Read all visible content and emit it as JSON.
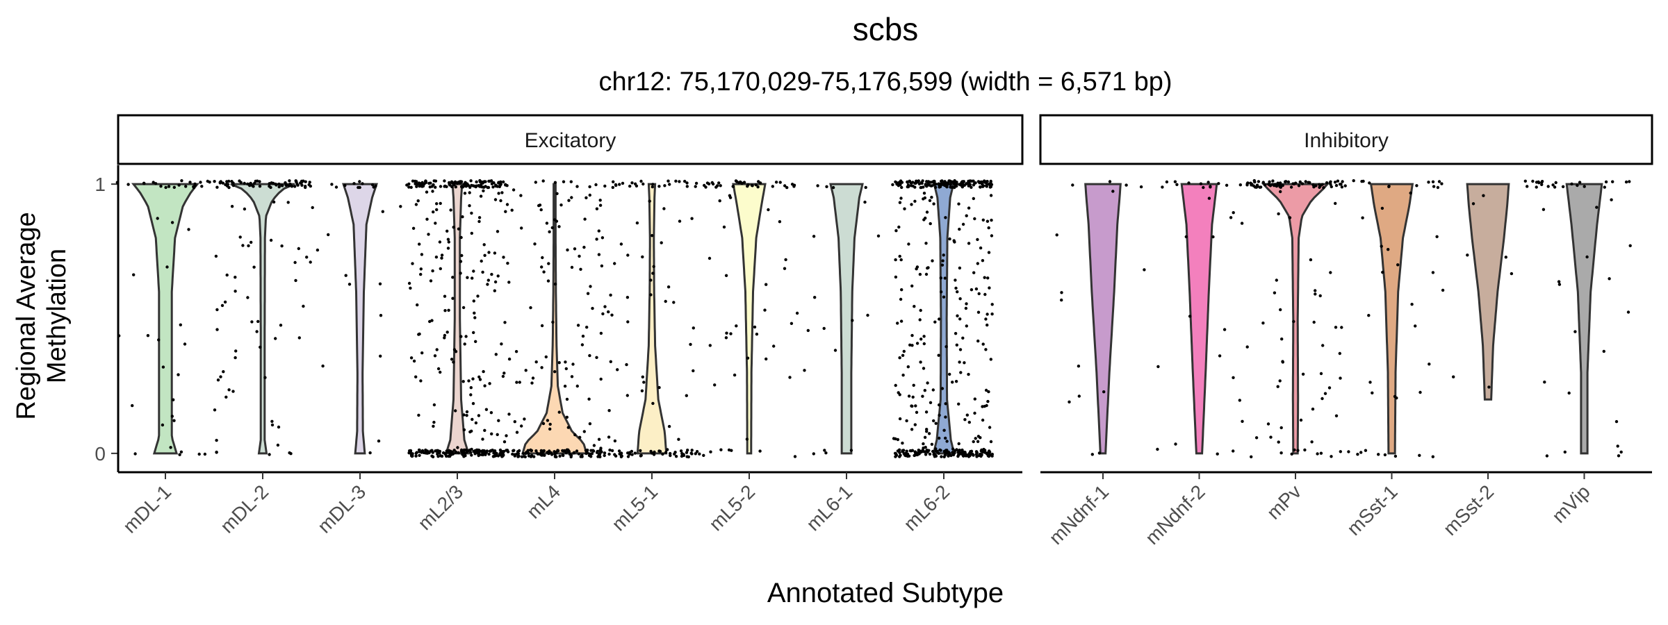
{
  "chart_data": {
    "type": "violin",
    "title": "scbs",
    "subtitle": "chr12: 75,170,029-75,176,599 (width = 6,571 bp)",
    "xlabel": "Annotated Subtype",
    "ylabel": [
      "Regional Average",
      "Methylation"
    ],
    "ylim": [
      -0.07,
      1.07
    ],
    "yticks": [
      0,
      1
    ],
    "ytick_labels": [
      "0",
      "1"
    ],
    "grid": false,
    "legend": "none",
    "panels": [
      {
        "name": "Excitatory",
        "categories": [
          {
            "name": "mDL-1",
            "color": "#c2e5c2",
            "density": [
              [
                0,
                0.35
              ],
              [
                0.06,
                0.2
              ],
              [
                0.35,
                0.2
              ],
              [
                0.6,
                0.2
              ],
              [
                0.8,
                0.3
              ],
              [
                0.92,
                0.55
              ],
              [
                0.97,
                0.8
              ],
              [
                1,
                1
              ]
            ],
            "points": 45,
            "mean": 0.82
          },
          {
            "name": "mDL-2",
            "color": "#ccddd3",
            "density": [
              [
                0,
                0.12
              ],
              [
                0.05,
                0.06
              ],
              [
                0.4,
                0.06
              ],
              [
                0.8,
                0.07
              ],
              [
                0.88,
                0.1
              ],
              [
                0.94,
                0.3
              ],
              [
                0.98,
                0.6
              ],
              [
                1,
                1
              ]
            ],
            "points": 120,
            "mean": 0.88
          },
          {
            "name": "mDL-3",
            "color": "#ddd6e8",
            "density": [
              [
                0,
                0.15
              ],
              [
                0.08,
                0.09
              ],
              [
                0.3,
                0.08
              ],
              [
                0.6,
                0.12
              ],
              [
                0.85,
                0.2
              ],
              [
                0.95,
                0.38
              ],
              [
                1,
                0.52
              ]
            ],
            "points": 25,
            "mean": 0.85
          },
          {
            "name": "mL2/3",
            "color": "#ebd5cf",
            "density": [
              [
                0,
                0.35
              ],
              [
                0.05,
                0.22
              ],
              [
                0.2,
                0.12
              ],
              [
                0.5,
                0.08
              ],
              [
                0.8,
                0.08
              ],
              [
                0.95,
                0.12
              ],
              [
                1,
                0.15
              ]
            ],
            "points": 400,
            "mean": 0.42
          },
          {
            "name": "mL4",
            "color": "#fcd8b3",
            "density": [
              [
                0,
                1
              ],
              [
                0.04,
                0.9
              ],
              [
                0.08,
                0.55
              ],
              [
                0.15,
                0.25
              ],
              [
                0.25,
                0.1
              ],
              [
                0.4,
                0.06
              ],
              [
                0.6,
                0.04
              ],
              [
                0.8,
                0.03
              ],
              [
                1,
                0.03
              ]
            ],
            "points": 220,
            "mean": 0.12
          },
          {
            "name": "mL5-1",
            "color": "#fcefc6",
            "density": [
              [
                0,
                0.45
              ],
              [
                0.08,
                0.4
              ],
              [
                0.2,
                0.2
              ],
              [
                0.4,
                0.1
              ],
              [
                0.6,
                0.07
              ],
              [
                0.8,
                0.06
              ],
              [
                0.95,
                0.08
              ],
              [
                1,
                0.1
              ]
            ],
            "points": 120,
            "mean": 0.35
          },
          {
            "name": "mL5-2",
            "color": "#fcfccc",
            "density": [
              [
                0,
                0.06
              ],
              [
                0.3,
                0.07
              ],
              [
                0.6,
                0.12
              ],
              [
                0.8,
                0.22
              ],
              [
                0.92,
                0.38
              ],
              [
                1,
                0.5
              ]
            ],
            "points": 70,
            "mean": 0.8
          },
          {
            "name": "mL6-1",
            "color": "#ccdcd3",
            "density": [
              [
                0,
                0.15
              ],
              [
                0.3,
                0.15
              ],
              [
                0.6,
                0.18
              ],
              [
                0.8,
                0.25
              ],
              [
                0.95,
                0.4
              ],
              [
                1,
                0.5
              ]
            ],
            "points": 20,
            "mean": 0.75
          },
          {
            "name": "mL6-2",
            "color": "#8fa9d3",
            "density": [
              [
                0,
                0.32
              ],
              [
                0.05,
                0.22
              ],
              [
                0.2,
                0.1
              ],
              [
                0.5,
                0.09
              ],
              [
                0.8,
                0.11
              ],
              [
                0.95,
                0.2
              ],
              [
                1,
                0.3
              ]
            ],
            "points": 500,
            "mean": 0.5
          }
        ]
      },
      {
        "name": "Inhibitory",
        "categories": [
          {
            "name": "mNdnf-1",
            "color": "#c79bcc",
            "density": [
              [
                0,
                0.08
              ],
              [
                0.3,
                0.2
              ],
              [
                0.6,
                0.35
              ],
              [
                0.85,
                0.45
              ],
              [
                0.95,
                0.52
              ],
              [
                1,
                0.55
              ]
            ],
            "points": 15,
            "mean": 0.6
          },
          {
            "name": "mNdnf-2",
            "color": "#f380bd",
            "density": [
              [
                0,
                0.09
              ],
              [
                0.3,
                0.2
              ],
              [
                0.6,
                0.3
              ],
              [
                0.85,
                0.4
              ],
              [
                0.95,
                0.5
              ],
              [
                1,
                0.55
              ]
            ],
            "points": 30,
            "mean": 0.62
          },
          {
            "name": "mPv",
            "color": "#ec9ba6",
            "density": [
              [
                0,
                0.07
              ],
              [
                0.2,
                0.08
              ],
              [
                0.5,
                0.07
              ],
              [
                0.8,
                0.1
              ],
              [
                0.88,
                0.2
              ],
              [
                0.94,
                0.5
              ],
              [
                0.98,
                0.85
              ],
              [
                1,
                1
              ]
            ],
            "points": 120,
            "mean": 0.85
          },
          {
            "name": "mSst-1",
            "color": "#dfa983",
            "density": [
              [
                0,
                0.1
              ],
              [
                0.3,
                0.12
              ],
              [
                0.6,
                0.2
              ],
              [
                0.8,
                0.35
              ],
              [
                0.92,
                0.55
              ],
              [
                1,
                0.65
              ]
            ],
            "points": 40,
            "mean": 0.7
          },
          {
            "name": "mSst-2",
            "color": "#c7ad9d",
            "density": [
              [
                0.2,
                0.1
              ],
              [
                0.4,
                0.16
              ],
              [
                0.6,
                0.3
              ],
              [
                0.8,
                0.5
              ],
              [
                0.92,
                0.6
              ],
              [
                1,
                0.65
              ]
            ],
            "points": 12,
            "mean": 0.75
          },
          {
            "name": "mVip",
            "color": "#aaaaaa",
            "density": [
              [
                0,
                0.1
              ],
              [
                0.3,
                0.1
              ],
              [
                0.6,
                0.2
              ],
              [
                0.85,
                0.4
              ],
              [
                0.95,
                0.5
              ],
              [
                1,
                0.55
              ]
            ],
            "points": 40,
            "mean": 0.65
          }
        ]
      }
    ]
  }
}
